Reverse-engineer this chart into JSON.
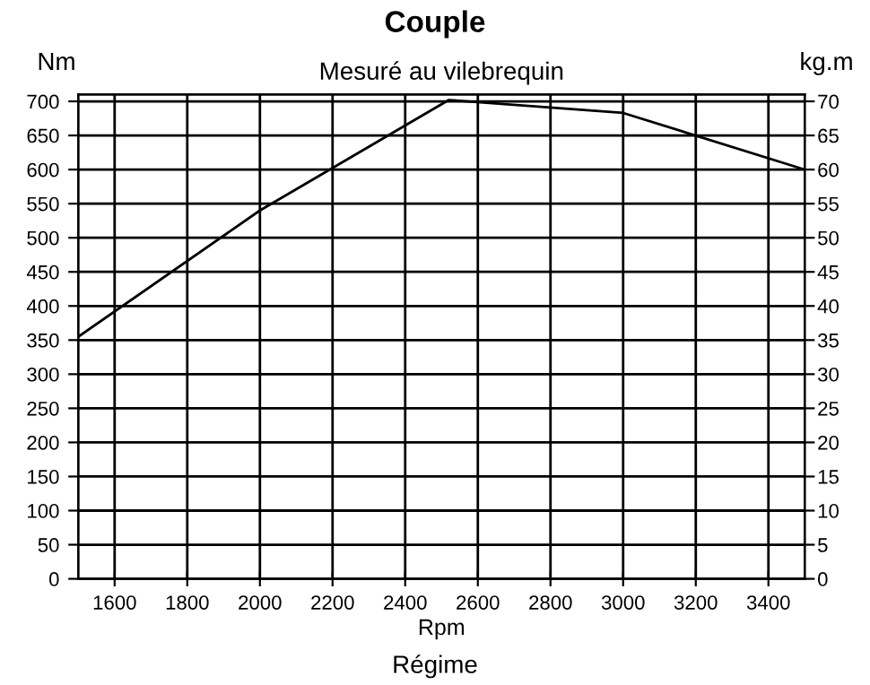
{
  "chart_data": {
    "type": "line",
    "title": "Couple",
    "subtitle": "Mesuré au vilebrequin",
    "xlabel": "Rpm",
    "ylabel": "Nm",
    "y2label": "kg.m",
    "annotations": [
      "Régime"
    ],
    "x": [
      1500,
      2000,
      2520,
      3000,
      3500
    ],
    "series": [
      {
        "color": "#000000",
        "values": [
          355,
          540,
          702,
          683,
          600
        ]
      }
    ],
    "xlim": [
      1500,
      3500
    ],
    "xticks": [
      1600,
      1800,
      2000,
      2200,
      2400,
      2600,
      2800,
      3000,
      3200,
      3400
    ],
    "ylim": [
      0,
      710
    ],
    "yticks": [
      0,
      50,
      100,
      150,
      200,
      250,
      300,
      350,
      400,
      450,
      500,
      550,
      600,
      650,
      700
    ],
    "y2lim": [
      0,
      71
    ],
    "y2ticks": [
      0,
      5,
      10,
      15,
      20,
      25,
      30,
      35,
      40,
      45,
      50,
      55,
      60,
      65,
      70
    ],
    "grid": true,
    "legend": false,
    "marker": "none",
    "line_style": "solid"
  }
}
